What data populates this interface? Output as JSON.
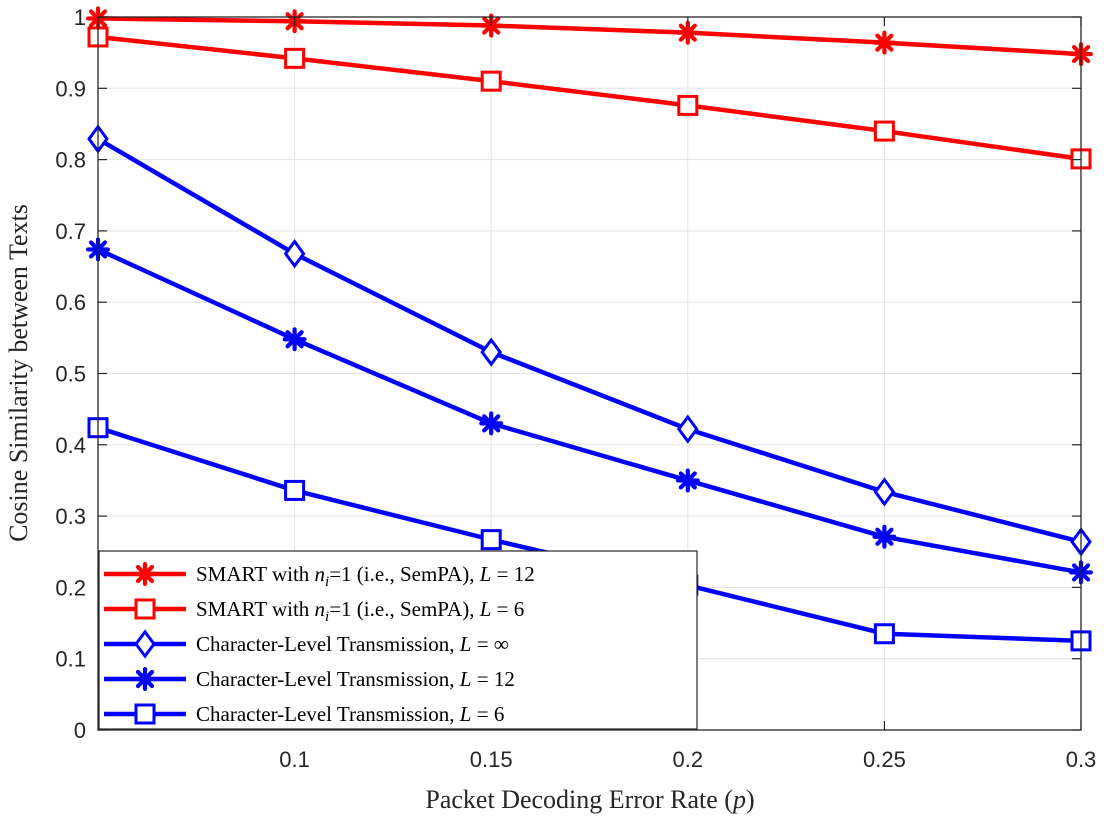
{
  "chart_data": {
    "type": "line",
    "title": "",
    "xlabel": "Packet Decoding Error Rate (p)",
    "ylabel": "Cosine Similarity between Texts",
    "xlim": [
      0.05,
      0.3
    ],
    "ylim": [
      0,
      1
    ],
    "grid": true,
    "x": [
      0.05,
      0.1,
      0.15,
      0.2,
      0.25,
      0.3
    ],
    "xticks": [
      0.1,
      0.15,
      0.2,
      0.25,
      0.3
    ],
    "xtick_labels": [
      "0.1",
      "0.15",
      "0.2",
      "0.25",
      "0.3"
    ],
    "yticks": [
      0,
      0.1,
      0.2,
      0.3,
      0.4,
      0.5,
      0.6,
      0.7,
      0.8,
      0.9,
      1
    ],
    "ytick_labels": [
      "0",
      "0.1",
      "0.2",
      "0.3",
      "0.4",
      "0.5",
      "0.6",
      "0.7",
      "0.8",
      "0.9",
      "1"
    ],
    "legend_position": "lower-left",
    "series": [
      {
        "name": "SMART with n_i=1 (i.e., SemPA), L = 12",
        "label_parts": [
          "SMART with ",
          "n",
          "i",
          "=1 (i.e., SemPA), ",
          "L",
          " = 12"
        ],
        "color": "#ff0000",
        "marker": "asterisk",
        "values": [
          0.998,
          0.994,
          0.988,
          0.978,
          0.964,
          0.948
        ]
      },
      {
        "name": "SMART with n_i=1 (i.e., SemPA), L = 6",
        "label_parts": [
          "SMART with ",
          "n",
          "i",
          "=1 (i.e., SemPA), ",
          "L",
          " = 6"
        ],
        "color": "#ff0000",
        "marker": "square",
        "values": [
          0.972,
          0.942,
          0.91,
          0.876,
          0.84,
          0.801
        ]
      },
      {
        "name": "Character-Level Transmission, L = ∞",
        "label_parts": [
          "Character-Level Transmission, ",
          "L",
          " = ∞"
        ],
        "color": "#0000ff",
        "marker": "diamond",
        "values": [
          0.829,
          0.668,
          0.53,
          0.422,
          0.334,
          0.264
        ]
      },
      {
        "name": "Character-Level Transmission, L = 12",
        "label_parts": [
          "Character-Level Transmission, ",
          "L",
          " = 12"
        ],
        "color": "#0000ff",
        "marker": "asterisk",
        "values": [
          0.674,
          0.548,
          0.43,
          0.35,
          0.271,
          0.221
        ]
      },
      {
        "name": "Character-Level Transmission, L = 6",
        "label_parts": [
          "Character-Level Transmission, ",
          "L",
          " = 6"
        ],
        "color": "#0000ff",
        "marker": "square",
        "values": [
          0.424,
          0.336,
          0.267,
          0.203,
          0.135,
          0.125
        ]
      }
    ]
  }
}
